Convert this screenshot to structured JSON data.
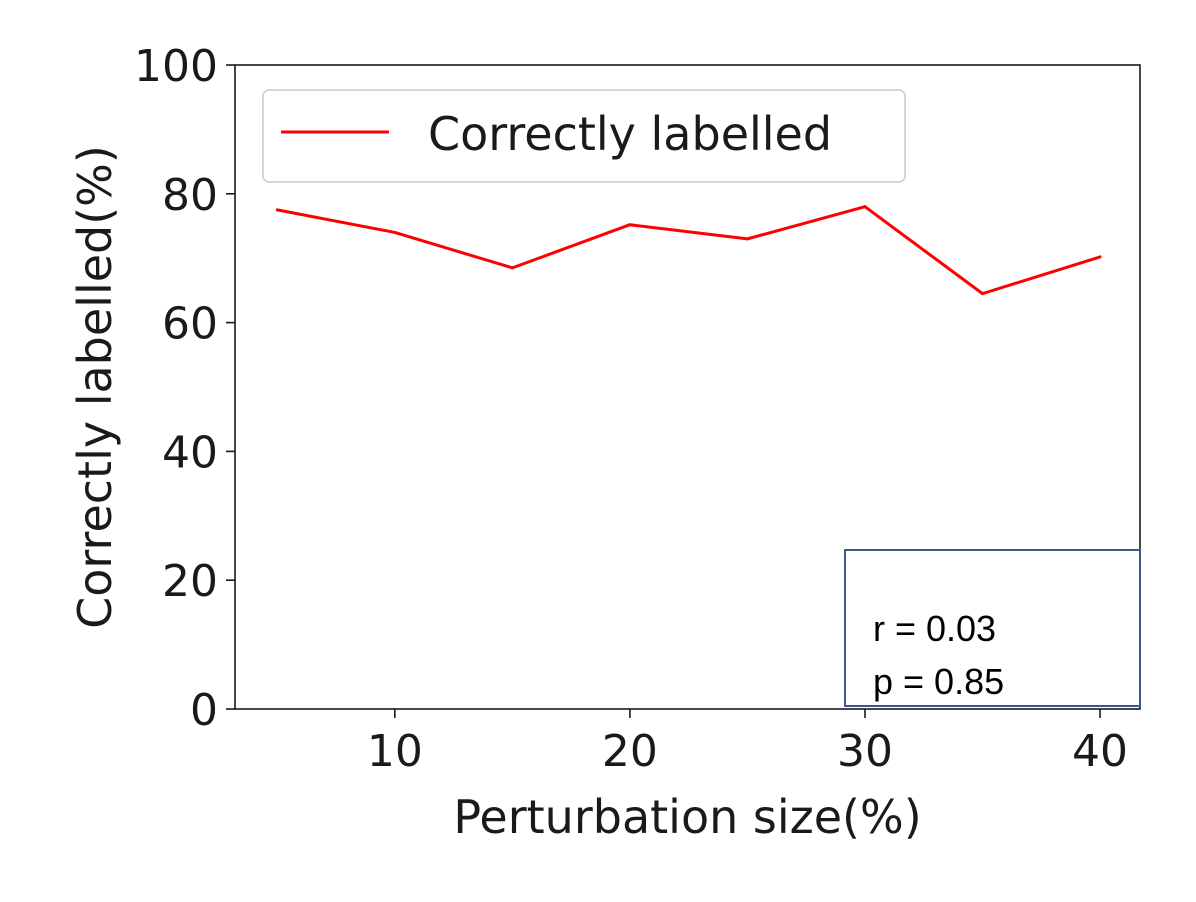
{
  "chart_data": {
    "type": "line",
    "title": "",
    "xlabel": "Perturbation size(%)",
    "ylabel": "Correctly labelled(%)",
    "xlim": [
      3.2,
      41.7
    ],
    "ylim": [
      0,
      100
    ],
    "x_ticks": [
      10,
      20,
      30,
      40
    ],
    "y_ticks": [
      0,
      20,
      40,
      60,
      80,
      100
    ],
    "x_tick_labels": [
      "10",
      "20",
      "30",
      "40"
    ],
    "y_tick_labels": [
      "0",
      "20",
      "40",
      "60",
      "80",
      "100"
    ],
    "grid": false,
    "legend_position": "top-left",
    "series": [
      {
        "name": "Correctly labelled",
        "color": "#ff0000",
        "x": [
          5,
          10,
          15,
          20,
          25,
          30,
          35,
          40
        ],
        "y": [
          77.5,
          74,
          68.5,
          75.2,
          73,
          78,
          64.5,
          70.2
        ]
      }
    ],
    "annotation": {
      "lines": [
        "r = 0.03",
        "p = 0.85"
      ],
      "border_color": "#3a5a8c"
    }
  }
}
